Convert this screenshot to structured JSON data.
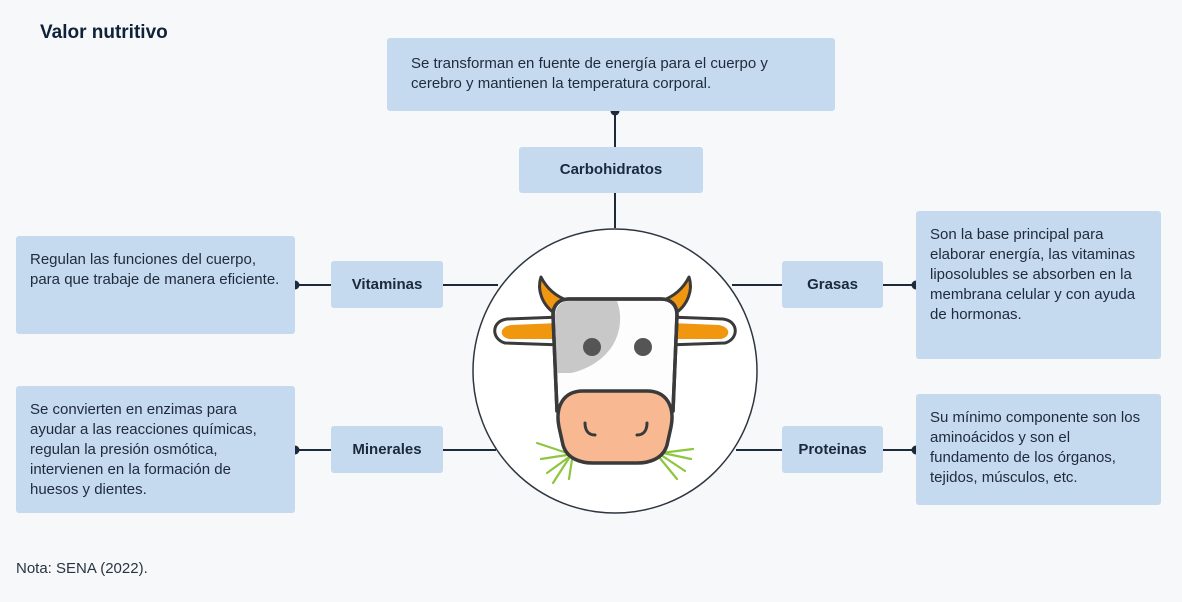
{
  "title": "Valor nutritivo",
  "center": {
    "icon": "cow-face-icon"
  },
  "nodes": {
    "carbohidratos": {
      "label": "Carbohidratos",
      "description": "Se transforman en fuente de energía para el cuerpo y cerebro y mantienen la temperatura corporal."
    },
    "vitaminas": {
      "label": "Vitaminas",
      "description": "Regulan las funciones del cuerpo, para que trabaje de manera eficiente."
    },
    "minerales": {
      "label": "Minerales",
      "description": "Se convierten en enzimas para ayudar a las reacciones químicas, regulan la presión osmótica, intervienen en la formación de huesos y dientes."
    },
    "grasas": {
      "label": "Grasas",
      "description": "Son la base principal para elaborar energía, las vitaminas liposolubles se absorben en la membrana celular y con ayuda de hormonas."
    },
    "proteinas": {
      "label": "Proteinas",
      "description": "Su mínimo componente son los aminoácidos y son el fundamento de los órganos, tejidos, músculos, etc."
    }
  },
  "note": "Nota: SENA (2022).",
  "colors": {
    "box_fill": "#c5d9ef",
    "line": "#1d2a3a",
    "horn": "#f0960f",
    "snout": "#f7b892",
    "grass": "#8dc63f"
  }
}
